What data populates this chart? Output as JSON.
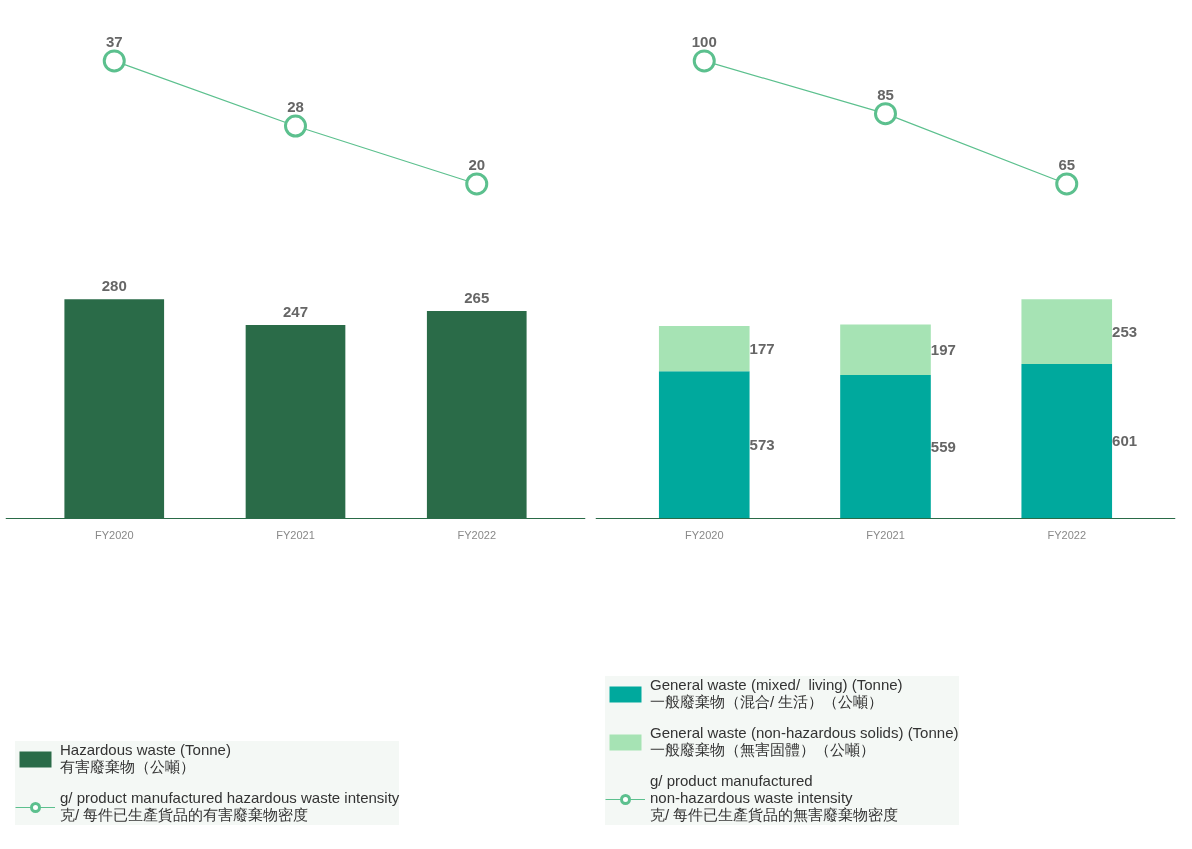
{
  "chart_data": [
    {
      "type": "line",
      "categories": [
        null,
        null,
        null
      ],
      "data_labels": true,
      "legend": "bottom",
      "tick_labels": false,
      "grid": false,
      "series": [
        {
          "name": "g/ product manufactured hazardous waste intensity\n克/ 每件已生產貨品的有害廢棄物密度",
          "color": "#5cc08e",
          "values": [
            37,
            28,
            20
          ],
          "marker": "circle"
        }
      ]
    },
    {
      "type": "bar",
      "categories": [
        "FY2020",
        "FY2021",
        "FY2022"
      ],
      "stacked": false,
      "data_labels": true,
      "legend": "bottom",
      "tick_labels": "x",
      "grid": false,
      "series": [
        {
          "name": "Hazardous waste (Tonne)\n有害廢棄物（公噸）",
          "color": "#2a6b48",
          "values": [
            280,
            247,
            265
          ]
        }
      ]
    },
    {
      "type": "line",
      "categories": [
        null,
        null,
        null
      ],
      "data_labels": true,
      "legend": "bottom",
      "tick_labels": false,
      "grid": false,
      "series": [
        {
          "name": "g/ product manufactured\nnon-hazardous waste intensity\n克/ 每件已生產貨品的無害廢棄物密度",
          "color": "#5cc08e",
          "values": [
            100,
            85,
            65
          ],
          "marker": "circle"
        }
      ]
    },
    {
      "type": "bar",
      "categories": [
        "FY2020",
        "FY2021",
        "FY2022"
      ],
      "stacked": true,
      "data_labels": true,
      "legend": "bottom",
      "tick_labels": "x",
      "grid": false,
      "series": [
        {
          "name": "General waste (mixed/  living) (Tonne)\n一般廢棄物（混合/ 生活）（公噸）",
          "color": "#00a99d",
          "values": [
            573,
            559,
            601
          ]
        },
        {
          "name": "General waste (non-hazardous solids) (Tonne)\n一般廢棄物（無害固體）（公噸）",
          "color": "#a6e3b4",
          "values": [
            177,
            197,
            253
          ]
        }
      ]
    }
  ]
}
